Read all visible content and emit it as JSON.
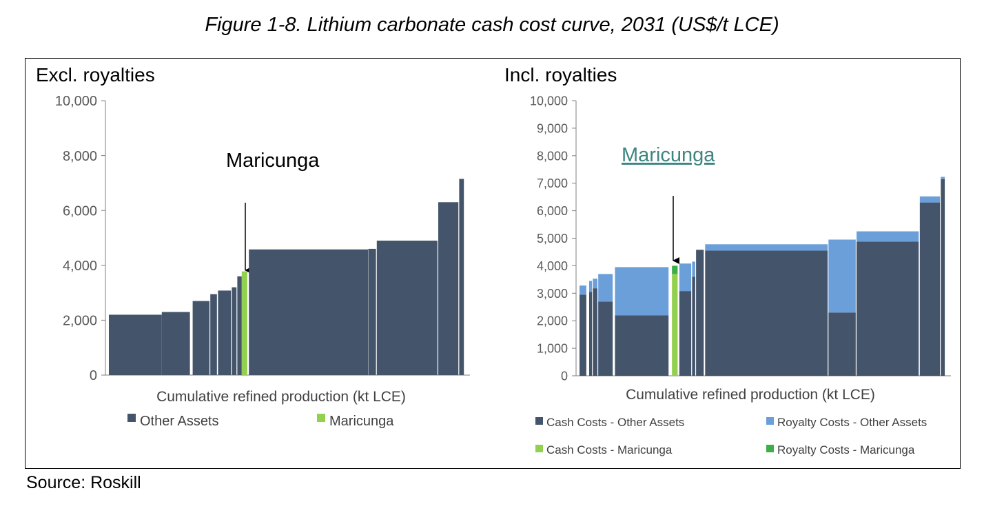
{
  "figure_title": "Figure 1-8. Lithium carbonate cash cost curve, 2031 (US$/t LCE)",
  "source": "Source: Roskill",
  "colors": {
    "other_cash": "#44546a",
    "royalty_other": "#6a9fd9",
    "maricunga_cash": "#92d050",
    "maricunga_royalty": "#3fae49"
  },
  "chart_data": [
    {
      "type": "bar",
      "title": "Excl. royalties",
      "xlabel": "Cumulative refined production (kt LCE)",
      "ylim": [
        0,
        10000
      ],
      "yticks": [
        "0",
        "2,000",
        "4,000",
        "6,000",
        "8,000",
        "10,000"
      ],
      "legend": [
        "Other Assets",
        "Maricunga"
      ],
      "annotation": "Maricunga",
      "x_range": [
        0,
        130
      ],
      "assets": [
        {
          "x0": 0,
          "x1": 19.2,
          "cash": 2200,
          "label": "Other Assets"
        },
        {
          "x0": 19.2,
          "x1": 29.4,
          "cash": 2300,
          "label": "Other Assets"
        },
        {
          "x0": 30.4,
          "x1": 36.5,
          "cash": 2700,
          "label": "Other Assets"
        },
        {
          "x0": 36.8,
          "x1": 39.2,
          "cash": 2950,
          "label": "Other Assets"
        },
        {
          "x0": 39.6,
          "x1": 44.3,
          "cash": 3080,
          "label": "Other Assets"
        },
        {
          "x0": 44.6,
          "x1": 46.3,
          "cash": 3200,
          "label": "Other Assets"
        },
        {
          "x0": 46.6,
          "x1": 48.2,
          "cash": 3600,
          "label": "Other Assets"
        },
        {
          "x0": 48.2,
          "x1": 50.2,
          "cash": 3780,
          "label": "Maricunga"
        },
        {
          "x0": 50.8,
          "x1": 94.0,
          "cash": 4580,
          "label": "Other Assets"
        },
        {
          "x0": 94.1,
          "x1": 96.9,
          "cash": 4600,
          "label": "Other Assets"
        },
        {
          "x0": 97.2,
          "x1": 119.2,
          "cash": 4900,
          "label": "Other Assets"
        },
        {
          "x0": 119.5,
          "x1": 126.8,
          "cash": 6300,
          "label": "Other Assets"
        },
        {
          "x0": 127.1,
          "x1": 128.8,
          "cash": 7150,
          "label": "Other Assets"
        }
      ]
    },
    {
      "type": "bar",
      "title": "Incl. royalties",
      "xlabel": "Cumulative refined production (kt LCE)",
      "ylim": [
        0,
        10000
      ],
      "yticks": [
        "0",
        "1,000",
        "2,000",
        "3,000",
        "4,000",
        "5,000",
        "6,000",
        "7,000",
        "8,000",
        "9,000",
        "10,000"
      ],
      "legend": [
        "Cash Costs - Other Assets",
        "Royalty Costs - Other Assets",
        "Cash Costs - Maricunga",
        "Royalty Costs - Maricunga"
      ],
      "annotation": "Maricunga",
      "x_range": [
        0,
        130
      ],
      "assets": [
        {
          "x0": 0.0,
          "x1": 2.4,
          "cash": 2950,
          "royalty": 330,
          "label": "Other Assets"
        },
        {
          "x0": 3.4,
          "x1": 4.4,
          "cash": 3050,
          "royalty": 400,
          "label": "Other Assets"
        },
        {
          "x0": 4.7,
          "x1": 6.3,
          "cash": 3180,
          "royalty": 350,
          "label": "Other Assets"
        },
        {
          "x0": 6.6,
          "x1": 11.7,
          "cash": 2700,
          "royalty": 1000,
          "label": "Other Assets"
        },
        {
          "x0": 12.5,
          "x1": 31.4,
          "cash": 2200,
          "royalty": 1750,
          "label": "Other Assets"
        },
        {
          "x0": 32.6,
          "x1": 34.6,
          "cash": 3700,
          "royalty": 300,
          "label": "Maricunga"
        },
        {
          "x0": 35.2,
          "x1": 39.4,
          "cash": 3080,
          "royalty": 1000,
          "label": "Other Assets"
        },
        {
          "x0": 39.7,
          "x1": 40.8,
          "cash": 3600,
          "royalty": 550,
          "label": "Other Assets"
        },
        {
          "x0": 41.1,
          "x1": 43.8,
          "cash": 4580,
          "royalty": 0,
          "label": "Other Assets"
        },
        {
          "x0": 44.3,
          "x1": 87.5,
          "cash": 4550,
          "royalty": 230,
          "label": "Other Assets"
        },
        {
          "x0": 87.8,
          "x1": 97.4,
          "cash": 2300,
          "royalty": 2650,
          "label": "Other Assets"
        },
        {
          "x0": 97.7,
          "x1": 119.6,
          "cash": 4880,
          "royalty": 370,
          "label": "Other Assets"
        },
        {
          "x0": 120.0,
          "x1": 127.1,
          "cash": 6300,
          "royalty": 220,
          "label": "Other Assets"
        },
        {
          "x0": 127.4,
          "x1": 128.8,
          "cash": 7150,
          "royalty": 80,
          "label": "Other Assets"
        }
      ]
    }
  ]
}
